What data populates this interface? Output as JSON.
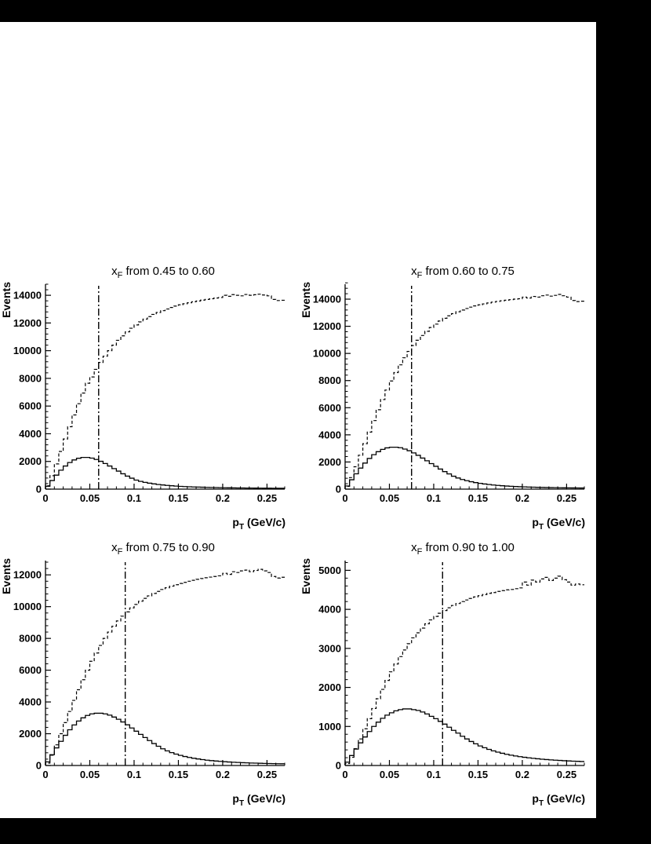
{
  "page": {
    "background": "#000000",
    "panel_background": "#ffffff",
    "foreground": "#000000"
  },
  "chart_data": [
    {
      "type": "line",
      "title": "x_F from 0.45 to 0.60",
      "title_x": "x",
      "title_sub": "F",
      "title_rest": " from 0.45 to 0.60",
      "ylabel": "Events",
      "xlabel": "p_T (GeV/c)",
      "xlabel_main": "p",
      "xlabel_sub": "T",
      "xlabel_rest": " (GeV/c)",
      "xlim": [
        0,
        0.27
      ],
      "ylim": [
        0,
        14800
      ],
      "xticks": [
        0,
        0.05,
        0.1,
        0.15,
        0.2,
        0.25
      ],
      "xtick_labels": [
        "0",
        "0.05",
        "0.1",
        "0.15",
        "0.2",
        "0.25"
      ],
      "yticks": [
        0,
        2000,
        4000,
        6000,
        8000,
        10000,
        12000,
        14000
      ],
      "ytick_labels": [
        "0",
        "2000",
        "4000",
        "6000",
        "8000",
        "10000",
        "12000",
        "14000"
      ],
      "x_minor_step": 0.01,
      "y_minor_step": 400,
      "bin_width": 0.005,
      "cut_line_x": 0.06,
      "grid": false,
      "legend": "none",
      "series": [
        {
          "name": "all-events-dashed",
          "style": "dashed",
          "values": [
            240,
            970,
            1820,
            2720,
            3620,
            4510,
            5360,
            6170,
            6940,
            7650,
            8100,
            8650,
            9150,
            9600,
            10000,
            10400,
            10750,
            11070,
            11360,
            11620,
            11860,
            12080,
            12280,
            12460,
            12620,
            12760,
            12890,
            13010,
            13120,
            13220,
            13310,
            13390,
            13460,
            13530,
            13590,
            13650,
            13700,
            13750,
            13800,
            13840,
            14000,
            13930,
            14050,
            14000,
            13960,
            14060,
            14000,
            14040,
            14080,
            14020,
            13960,
            13700,
            13620,
            13640
          ]
        },
        {
          "name": "selected-events-solid",
          "style": "solid",
          "values": [
            210,
            620,
            1010,
            1370,
            1670,
            1920,
            2110,
            2230,
            2290,
            2290,
            2240,
            2140,
            2010,
            1850,
            1670,
            1480,
            1300,
            1110,
            940,
            790,
            650,
            560,
            490,
            430,
            380,
            335,
            300,
            270,
            245,
            220,
            200,
            185,
            170,
            158,
            147,
            137,
            128,
            120,
            113,
            107,
            101,
            96,
            91,
            87,
            83,
            80,
            77,
            74,
            71,
            68,
            66,
            64,
            62,
            60
          ]
        }
      ]
    },
    {
      "type": "line",
      "title": "x_F from 0.60 to 0.75",
      "title_x": "x",
      "title_sub": "F",
      "title_rest": " from 0.60 to 0.75",
      "ylabel": "Events",
      "xlabel": "p_T (GeV/c)",
      "xlabel_main": "p",
      "xlabel_sub": "T",
      "xlabel_rest": " (GeV/c)",
      "xlim": [
        0,
        0.27
      ],
      "ylim": [
        0,
        15100
      ],
      "xticks": [
        0,
        0.05,
        0.1,
        0.15,
        0.2,
        0.25
      ],
      "xtick_labels": [
        "0",
        "0.05",
        "0.1",
        "0.15",
        "0.2",
        "0.25"
      ],
      "yticks": [
        0,
        2000,
        4000,
        6000,
        8000,
        10000,
        12000,
        14000
      ],
      "ytick_labels": [
        "0",
        "2000",
        "4000",
        "6000",
        "8000",
        "10000",
        "12000",
        "14000"
      ],
      "x_minor_step": 0.01,
      "y_minor_step": 400,
      "bin_width": 0.005,
      "cut_line_x": 0.075,
      "grid": false,
      "legend": "none",
      "series": [
        {
          "name": "all-events-dashed",
          "style": "dashed",
          "values": [
            200,
            850,
            1650,
            2500,
            3350,
            4200,
            5050,
            5850,
            6600,
            7300,
            7970,
            8590,
            9160,
            9680,
            10150,
            10580,
            10970,
            11320,
            11630,
            11910,
            12160,
            12390,
            12590,
            12770,
            12930,
            13070,
            13200,
            13310,
            13410,
            13500,
            13580,
            13650,
            13720,
            13780,
            13830,
            13880,
            13920,
            13960,
            14000,
            14030,
            14150,
            14080,
            14200,
            14150,
            14250,
            14300,
            14220,
            14280,
            14350,
            14250,
            14150,
            13900,
            13820,
            13850
          ]
        },
        {
          "name": "selected-events-solid",
          "style": "solid",
          "values": [
            230,
            690,
            1130,
            1550,
            1920,
            2260,
            2540,
            2760,
            2930,
            3040,
            3090,
            3090,
            3050,
            2950,
            2830,
            2670,
            2490,
            2290,
            2090,
            1880,
            1680,
            1480,
            1290,
            1120,
            950,
            820,
            710,
            620,
            545,
            480,
            425,
            380,
            340,
            305,
            275,
            250,
            228,
            208,
            192,
            178,
            165,
            154,
            144,
            135,
            127,
            120,
            113,
            107,
            102,
            97,
            93,
            89,
            85,
            82
          ]
        }
      ]
    },
    {
      "type": "line",
      "title": "x_F from 0.75 to 0.90",
      "title_x": "x",
      "title_sub": "F",
      "title_rest": " from 0.75 to 0.90",
      "ylabel": "Events",
      "xlabel": "p_T (GeV/c)",
      "xlabel_main": "p",
      "xlabel_sub": "T",
      "xlabel_rest": " (GeV/c)",
      "xlim": [
        0,
        0.27
      ],
      "ylim": [
        0,
        12900
      ],
      "xticks": [
        0,
        0.05,
        0.1,
        0.15,
        0.2,
        0.25
      ],
      "xtick_labels": [
        "0",
        "0.05",
        "0.1",
        "0.15",
        "0.2",
        "0.25"
      ],
      "yticks": [
        0,
        2000,
        4000,
        6000,
        8000,
        10000,
        12000
      ],
      "ytick_labels": [
        "0",
        "2000",
        "4000",
        "6000",
        "8000",
        "10000",
        "12000"
      ],
      "x_minor_step": 0.01,
      "y_minor_step": 400,
      "bin_width": 0.005,
      "cut_line_x": 0.09,
      "grid": false,
      "legend": "none",
      "series": [
        {
          "name": "all-events-dashed",
          "style": "dashed",
          "values": [
            150,
            650,
            1300,
            2000,
            2700,
            3400,
            4100,
            4770,
            5400,
            6000,
            6560,
            7080,
            7560,
            8000,
            8400,
            8770,
            9100,
            9400,
            9670,
            9920,
            10140,
            10340,
            10520,
            10680,
            10830,
            10960,
            11080,
            11190,
            11290,
            11380,
            11460,
            11530,
            11600,
            11660,
            11720,
            11770,
            11820,
            11860,
            11900,
            11940,
            12100,
            12030,
            12200,
            12150,
            12250,
            12300,
            12200,
            12280,
            12350,
            12250,
            12150,
            11900,
            11800,
            11850
          ]
        },
        {
          "name": "selected-events-solid",
          "style": "solid",
          "values": [
            230,
            680,
            1110,
            1520,
            1900,
            2250,
            2550,
            2800,
            3000,
            3150,
            3250,
            3290,
            3290,
            3250,
            3170,
            3050,
            2910,
            2740,
            2560,
            2360,
            2160,
            1960,
            1760,
            1570,
            1380,
            1210,
            1050,
            920,
            810,
            715,
            635,
            565,
            505,
            455,
            410,
            370,
            335,
            305,
            280,
            258,
            238,
            220,
            204,
            190,
            177,
            166,
            156,
            147,
            139,
            131,
            124,
            118,
            112,
            107
          ]
        }
      ]
    },
    {
      "type": "line",
      "title": "x_F from 0.90 to 1.00",
      "title_x": "x",
      "title_sub": "F",
      "title_rest": " from 0.90 to 1.00",
      "ylabel": "Events",
      "xlabel": "p_T (GeV/c)",
      "xlabel_main": "p",
      "xlabel_sub": "T",
      "xlabel_rest": " (GeV/c)",
      "xlim": [
        0,
        0.27
      ],
      "ylim": [
        0,
        5250
      ],
      "xticks": [
        0,
        0.05,
        0.1,
        0.15,
        0.2,
        0.25
      ],
      "xtick_labels": [
        "0",
        "0.05",
        "0.1",
        "0.15",
        "0.2",
        "0.25"
      ],
      "yticks": [
        0,
        1000,
        2000,
        3000,
        4000,
        5000
      ],
      "ytick_labels": [
        "0",
        "1000",
        "2000",
        "3000",
        "4000",
        "5000"
      ],
      "x_minor_step": 0.01,
      "y_minor_step": 200,
      "bin_width": 0.005,
      "cut_line_x": 0.11,
      "grid": false,
      "legend": "none",
      "series": [
        {
          "name": "all-events-dashed",
          "style": "dashed",
          "values": [
            50,
            210,
            430,
            680,
            940,
            1200,
            1460,
            1710,
            1950,
            2180,
            2400,
            2600,
            2790,
            2960,
            3120,
            3270,
            3400,
            3520,
            3630,
            3730,
            3820,
            3900,
            3970,
            4040,
            4100,
            4150,
            4200,
            4240,
            4280,
            4320,
            4350,
            4380,
            4410,
            4430,
            4460,
            4480,
            4500,
            4510,
            4530,
            4550,
            4700,
            4620,
            4750,
            4700,
            4780,
            4820,
            4740,
            4800,
            4850,
            4760,
            4700,
            4620,
            4650,
            4630
          ]
        },
        {
          "name": "selected-events-solid",
          "style": "solid",
          "values": [
            85,
            255,
            420,
            580,
            730,
            870,
            1000,
            1110,
            1210,
            1290,
            1350,
            1400,
            1430,
            1450,
            1450,
            1430,
            1410,
            1370,
            1320,
            1260,
            1200,
            1130,
            1060,
            980,
            900,
            830,
            750,
            680,
            615,
            555,
            500,
            455,
            412,
            375,
            342,
            313,
            287,
            264,
            244,
            226,
            210,
            196,
            183,
            172,
            161,
            152,
            143,
            136,
            129,
            122,
            117,
            111,
            107,
            102
          ]
        }
      ]
    }
  ]
}
